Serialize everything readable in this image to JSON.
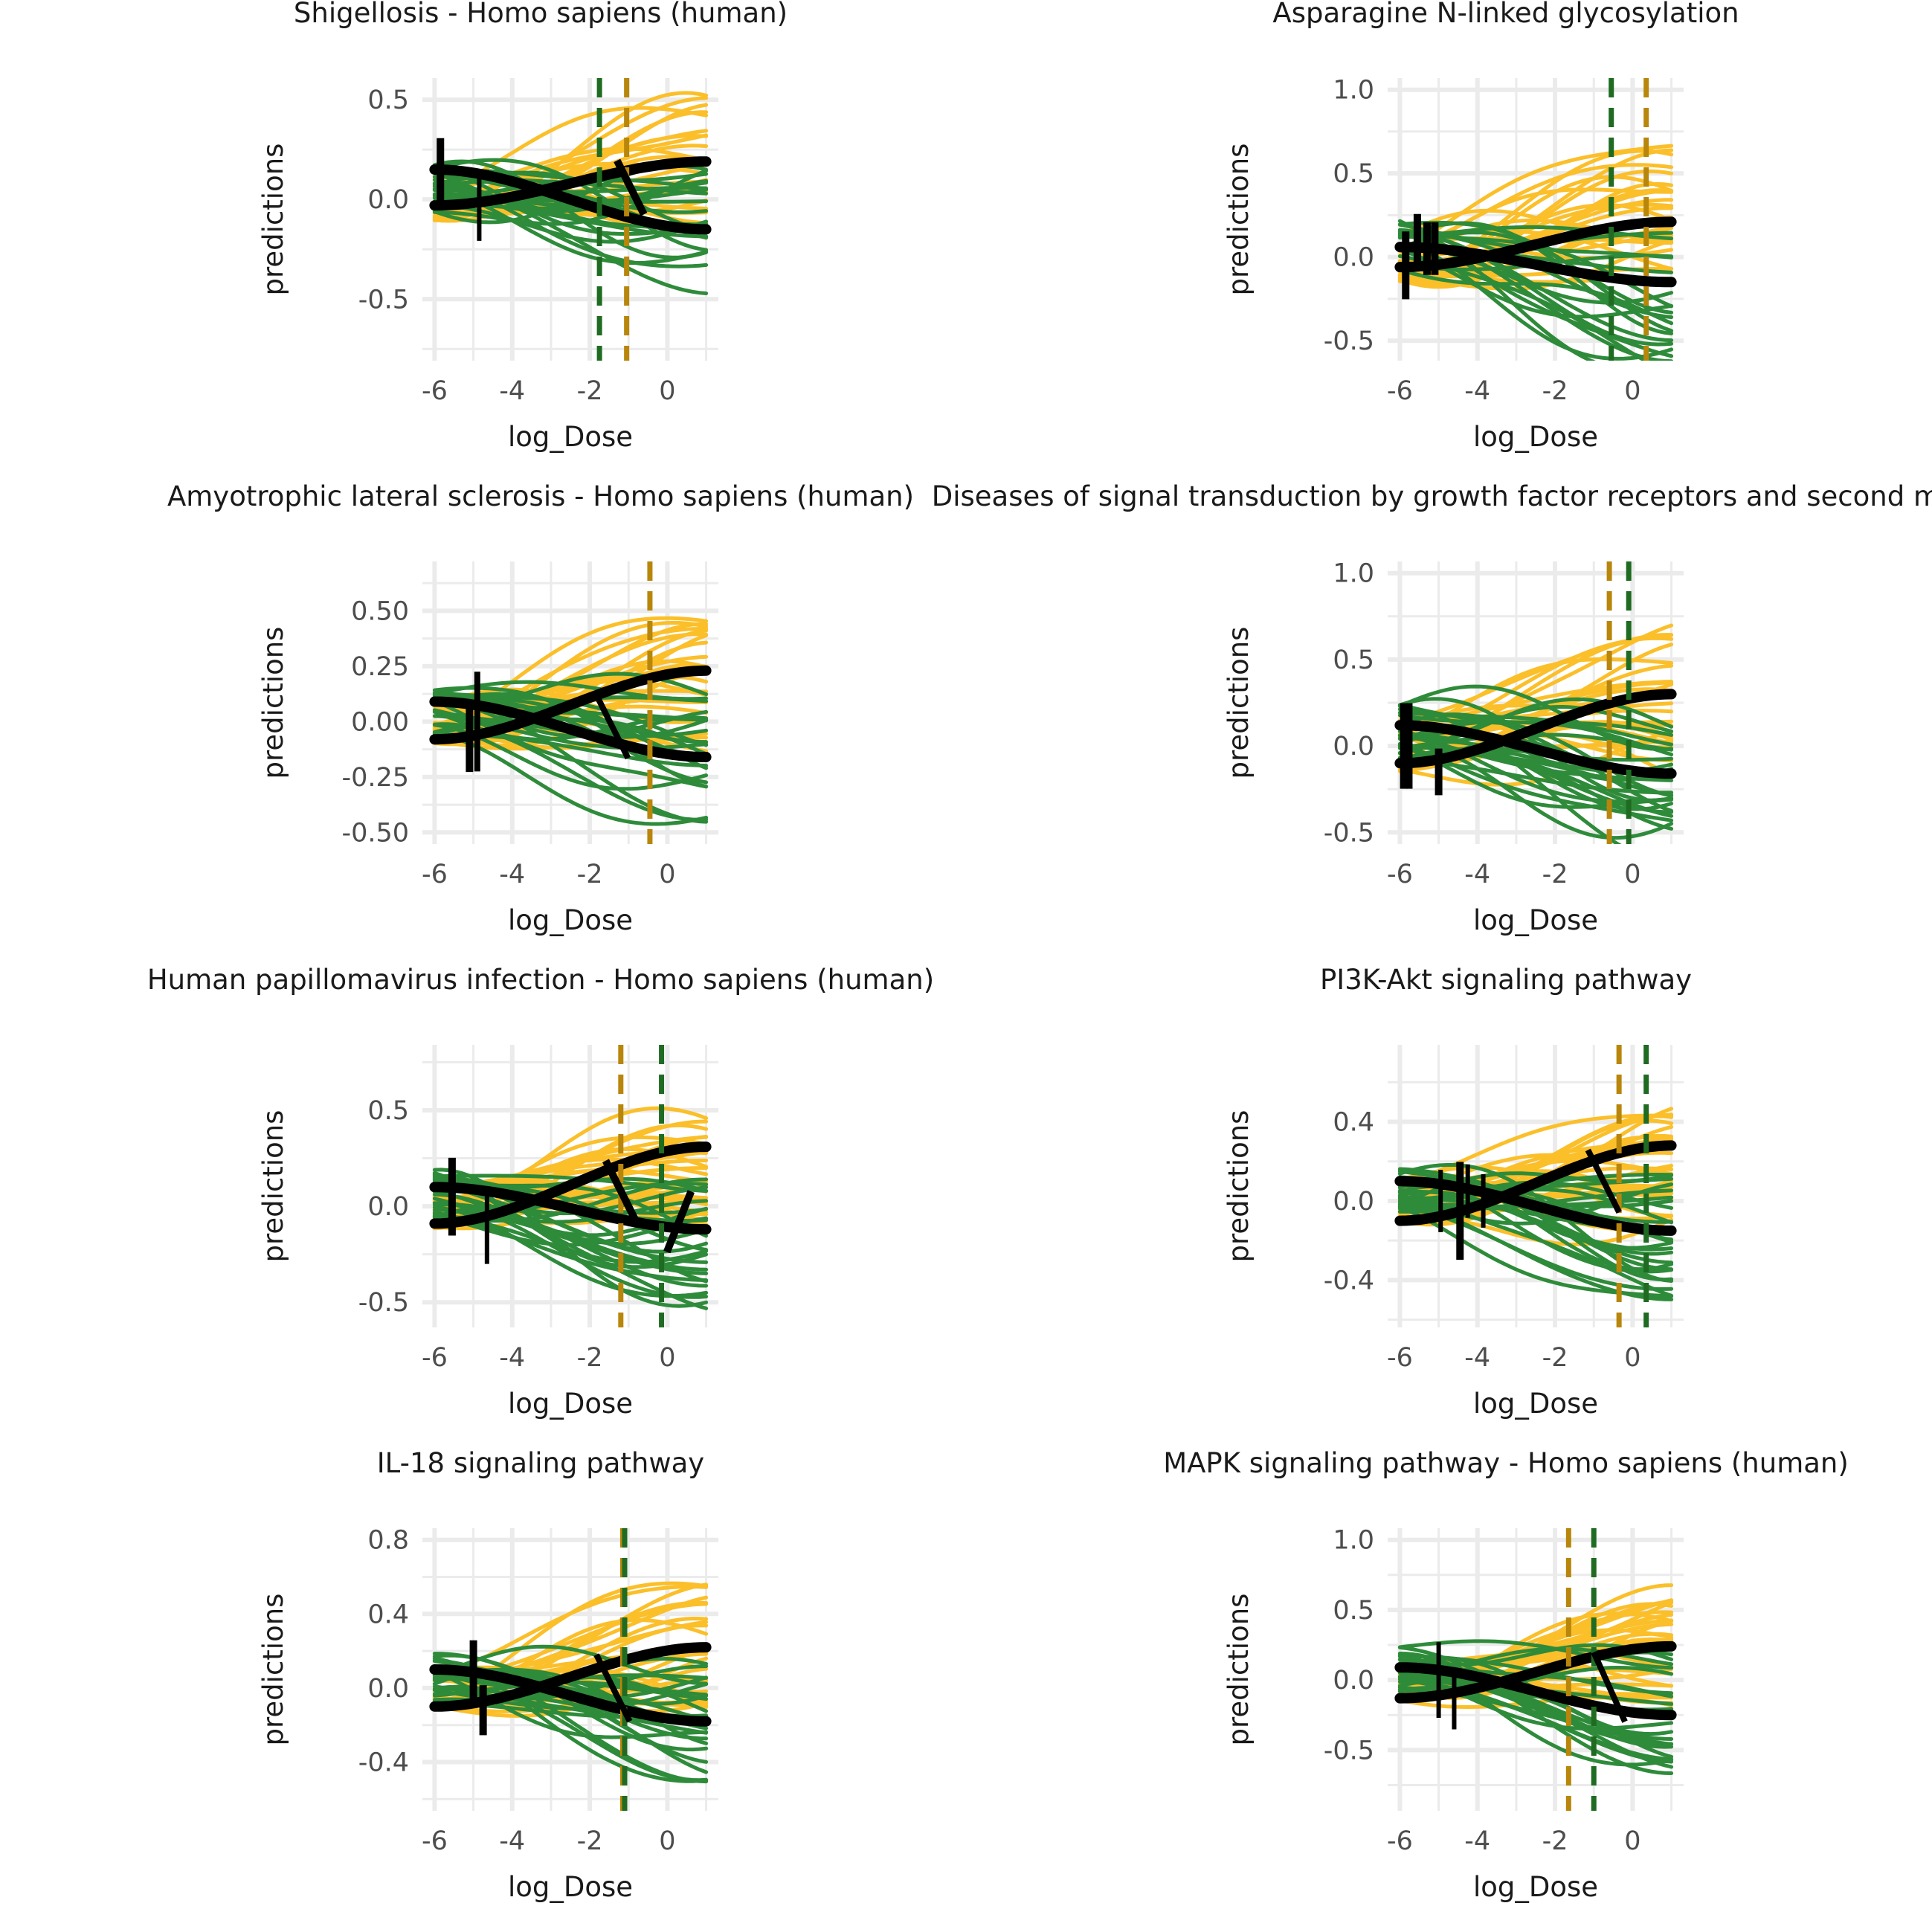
{
  "colors": {
    "green": "#2e8b3a",
    "yellow": "#fbbf2a",
    "dark_green_dash": "#1f6b22",
    "dark_yellow_dash": "#b8860b",
    "fit": "#000000",
    "grid": "#ebebeb"
  },
  "chart_data": [
    {
      "type": "line",
      "title": "Shigellosis - Homo sapiens (human)",
      "xlabel": "log_Dose",
      "ylabel": "predictions",
      "xlim": [
        -6,
        1
      ],
      "ylim": [
        -0.75,
        0.55
      ],
      "xticks": [
        -6,
        -4,
        -2,
        0
      ],
      "xtick_labels": [
        "-6",
        "-4",
        "-2",
        "0"
      ],
      "yticks": [
        -0.5,
        0,
        0.5
      ],
      "ytick_labels": [
        "-0.5",
        "0.0",
        "0.5"
      ],
      "vlines": [
        {
          "x": -1.75,
          "color": "green"
        },
        {
          "x": -1.05,
          "color": "yellow"
        }
      ],
      "fits": [
        {
          "start": 0.15,
          "end": -0.15
        },
        {
          "start": -0.03,
          "end": 0.19
        }
      ],
      "marks": [
        {
          "x": -5.85,
          "y": 0.15,
          "len": 0.35,
          "w": 10
        },
        {
          "x": -4.85,
          "y": -0.05,
          "len": 0.35,
          "w": 6
        },
        {
          "x": -0.95,
          "y": 0.06,
          "len": 0.3,
          "w": 10,
          "tilt": 0.5
        }
      ],
      "green_count": 24,
      "yellow_count": 22,
      "seed": 11
    },
    {
      "type": "line",
      "title": "Asparagine N-linked glycosylation",
      "xlabel": "log_Dose",
      "ylabel": "predictions",
      "xlim": [
        -6,
        1
      ],
      "ylim": [
        -0.55,
        1.0
      ],
      "xticks": [
        -6,
        -4,
        -2,
        0
      ],
      "xtick_labels": [
        "-6",
        "-4",
        "-2",
        "0"
      ],
      "yticks": [
        -0.5,
        0,
        0.5,
        1.0
      ],
      "ytick_labels": [
        "-0.5",
        "0.0",
        "0.5",
        "1.0"
      ],
      "vlines": [
        {
          "x": -0.55,
          "color": "green"
        },
        {
          "x": 0.35,
          "color": "yellow"
        }
      ],
      "fits": [
        {
          "start": 0.06,
          "end": -0.15
        },
        {
          "start": -0.06,
          "end": 0.21
        }
      ],
      "marks": [
        {
          "x": -5.85,
          "y": -0.05,
          "len": 0.45,
          "w": 10
        },
        {
          "x": -5.55,
          "y": 0.1,
          "len": 0.35,
          "w": 10
        },
        {
          "x": -5.3,
          "y": 0.05,
          "len": 0.35,
          "w": 10
        },
        {
          "x": -5.1,
          "y": 0.05,
          "len": 0.35,
          "w": 10
        }
      ],
      "green_count": 20,
      "yellow_count": 26,
      "seed": 23
    },
    {
      "type": "line",
      "title": "Amyotrophic lateral sclerosis - Homo sapiens (human)",
      "xlabel": "log_Dose",
      "ylabel": "predictions",
      "xlim": [
        -6,
        1
      ],
      "ylim": [
        -0.5,
        0.67
      ],
      "xticks": [
        -6,
        -4,
        -2,
        0
      ],
      "xtick_labels": [
        "-6",
        "-4",
        "-2",
        "0"
      ],
      "yticks": [
        -0.5,
        -0.25,
        0,
        0.25,
        0.5
      ],
      "ytick_labels": [
        "-0.50",
        "-0.25",
        "0.00",
        "0.25",
        "0.50"
      ],
      "vlines": [
        {
          "x": -0.45,
          "color": "yellow"
        }
      ],
      "fits": [
        {
          "start": 0.09,
          "end": -0.16
        },
        {
          "start": -0.08,
          "end": 0.23
        }
      ],
      "marks": [
        {
          "x": -5.1,
          "y": -0.07,
          "len": 0.35,
          "w": 10
        },
        {
          "x": -4.9,
          "y": 0.0,
          "len": 0.5,
          "w": 8
        },
        {
          "x": -1.4,
          "y": -0.03,
          "len": 0.3,
          "w": 8,
          "tilt": 0.5
        }
      ],
      "green_count": 24,
      "yellow_count": 28,
      "seed": 37
    },
    {
      "type": "line",
      "title": "Diseases of signal transduction by growth factor receptors and second messengers",
      "xlabel": "log_Dose",
      "ylabel": "predictions",
      "xlim": [
        -6,
        1
      ],
      "ylim": [
        -0.5,
        1.0
      ],
      "xticks": [
        -6,
        -4,
        -2,
        0
      ],
      "xtick_labels": [
        "-6",
        "-4",
        "-2",
        "0"
      ],
      "yticks": [
        -0.5,
        0,
        0.5,
        1.0
      ],
      "ytick_labels": [
        "-0.5",
        "0.0",
        "0.5",
        "1.0"
      ],
      "vlines": [
        {
          "x": -0.6,
          "color": "yellow"
        },
        {
          "x": -0.1,
          "color": "green"
        }
      ],
      "fits": [
        {
          "start": 0.12,
          "end": -0.16
        },
        {
          "start": -0.1,
          "end": 0.3
        }
      ],
      "marks": [
        {
          "x": -5.9,
          "y": 0.0,
          "len": 0.55,
          "w": 10
        },
        {
          "x": -5.75,
          "y": 0.0,
          "len": 0.55,
          "w": 8
        },
        {
          "x": -5.0,
          "y": -0.15,
          "len": 0.3,
          "w": 10
        }
      ],
      "green_count": 26,
      "yellow_count": 24,
      "seed": 41
    },
    {
      "type": "line",
      "title": "Human papillomavirus infection - Homo sapiens (human)",
      "xlabel": "log_Dose",
      "ylabel": "predictions",
      "xlim": [
        -6,
        1
      ],
      "ylim": [
        -0.57,
        0.78
      ],
      "xticks": [
        -6,
        -4,
        -2,
        0
      ],
      "xtick_labels": [
        "-6",
        "-4",
        "-2",
        "0"
      ],
      "yticks": [
        -0.5,
        0,
        0.5
      ],
      "ytick_labels": [
        "-0.5",
        "0.0",
        "0.5"
      ],
      "vlines": [
        {
          "x": -1.2,
          "color": "yellow"
        },
        {
          "x": -0.15,
          "color": "green"
        }
      ],
      "fits": [
        {
          "start": 0.1,
          "end": -0.12
        },
        {
          "start": -0.09,
          "end": 0.31
        }
      ],
      "marks": [
        {
          "x": -5.55,
          "y": 0.05,
          "len": 0.45,
          "w": 10
        },
        {
          "x": -4.65,
          "y": -0.12,
          "len": 0.4,
          "w": 6
        },
        {
          "x": -1.2,
          "y": 0.08,
          "len": 0.35,
          "w": 10,
          "tilt": 0.5
        },
        {
          "x": 0.3,
          "y": -0.08,
          "len": 0.35,
          "w": 10,
          "tilt": -0.4
        }
      ],
      "green_count": 26,
      "yellow_count": 28,
      "seed": 53
    },
    {
      "type": "line",
      "title": "PI3K-Akt signaling pathway",
      "xlabel": "log_Dose",
      "ylabel": "predictions",
      "xlim": [
        -6,
        1
      ],
      "ylim": [
        -0.58,
        0.73
      ],
      "xticks": [
        -6,
        -4,
        -2,
        0
      ],
      "xtick_labels": [
        "-6",
        "-4",
        "-2",
        "0"
      ],
      "yticks": [
        -0.4,
        0,
        0.4
      ],
      "ytick_labels": [
        "-0.4",
        "0.0",
        "0.4"
      ],
      "vlines": [
        {
          "x": -0.35,
          "color": "yellow"
        },
        {
          "x": 0.35,
          "color": "green"
        }
      ],
      "fits": [
        {
          "start": 0.1,
          "end": -0.15
        },
        {
          "start": -0.1,
          "end": 0.28
        }
      ],
      "marks": [
        {
          "x": -4.95,
          "y": 0.0,
          "len": 0.35,
          "w": 6
        },
        {
          "x": -4.45,
          "y": -0.05,
          "len": 0.55,
          "w": 10
        },
        {
          "x": -4.25,
          "y": 0.05,
          "len": 0.3,
          "w": 6
        },
        {
          "x": -3.85,
          "y": 0.0,
          "len": 0.3,
          "w": 6
        },
        {
          "x": -0.75,
          "y": 0.1,
          "len": 0.35,
          "w": 8,
          "tilt": 0.5
        }
      ],
      "green_count": 26,
      "yellow_count": 28,
      "seed": 67
    },
    {
      "type": "line",
      "title": "IL-18 signaling pathway",
      "xlabel": "log_Dose",
      "ylabel": "predictions",
      "xlim": [
        -6,
        1
      ],
      "ylim": [
        -0.6,
        0.8
      ],
      "xticks": [
        -6,
        -4,
        -2,
        0
      ],
      "xtick_labels": [
        "-6",
        "-4",
        "-2",
        "0"
      ],
      "yticks": [
        -0.4,
        0,
        0.4,
        0.8
      ],
      "ytick_labels": [
        "-0.4",
        "0.0",
        "0.4",
        "0.8"
      ],
      "vlines": [
        {
          "x": -1.15,
          "color": "yellow"
        },
        {
          "x": -1.1,
          "color": "green"
        }
      ],
      "fits": [
        {
          "start": 0.1,
          "end": -0.18
        },
        {
          "start": -0.1,
          "end": 0.22
        }
      ],
      "marks": [
        {
          "x": -5.0,
          "y": 0.1,
          "len": 0.35,
          "w": 10
        },
        {
          "x": -4.75,
          "y": -0.12,
          "len": 0.3,
          "w": 10
        },
        {
          "x": -1.4,
          "y": 0.0,
          "len": 0.4,
          "w": 8,
          "tilt": 0.5
        }
      ],
      "green_count": 24,
      "yellow_count": 28,
      "seed": 79
    },
    {
      "type": "line",
      "title": "MAPK signaling pathway - Homo sapiens (human)",
      "xlabel": "log_Dose",
      "ylabel": "predictions",
      "xlim": [
        -6,
        1
      ],
      "ylim": [
        -0.85,
        1.0
      ],
      "xticks": [
        -6,
        -4,
        -2,
        0
      ],
      "xtick_labels": [
        "-6",
        "-4",
        "-2",
        "0"
      ],
      "yticks": [
        -0.5,
        0,
        0.5,
        1.0
      ],
      "ytick_labels": [
        "-0.5",
        "0.0",
        "0.5",
        "1.0"
      ],
      "vlines": [
        {
          "x": -1.65,
          "color": "yellow"
        },
        {
          "x": -1.0,
          "color": "green"
        }
      ],
      "fits": [
        {
          "start": 0.09,
          "end": -0.25
        },
        {
          "start": -0.13,
          "end": 0.24
        }
      ],
      "marks": [
        {
          "x": -5.0,
          "y": 0.0,
          "len": 0.6,
          "w": 6
        },
        {
          "x": -4.6,
          "y": -0.15,
          "len": 0.45,
          "w": 6
        },
        {
          "x": -0.6,
          "y": -0.05,
          "len": 0.55,
          "w": 8,
          "tilt": 0.45
        }
      ],
      "green_count": 22,
      "yellow_count": 28,
      "seed": 91
    }
  ]
}
